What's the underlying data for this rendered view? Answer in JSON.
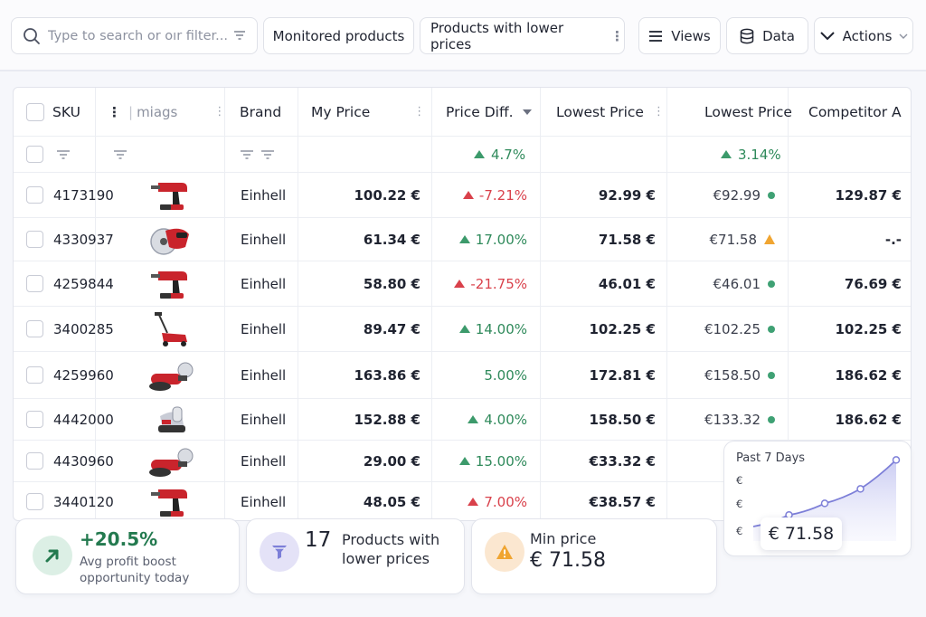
{
  "toolbar": {
    "search_placeholder": "Type to search or οır filter...",
    "chip_monitored": "Monitored products",
    "chip_lower_prices": "Products with lower prices",
    "views_label": "Views",
    "data_label": "Data",
    "actions_label": "Actions"
  },
  "table": {
    "headers": {
      "sku": "SKU",
      "images": "miags",
      "brand": "Brand",
      "my_price": "My Price",
      "price_diff": "Price Diff.",
      "lowest_price": "Lowest Price",
      "lowest_price_2": "Lowest Price",
      "competitor_a": "Competitor A"
    },
    "summary": {
      "price_diff": "4.7%",
      "lowest_price_2": "3.14%"
    },
    "rows": [
      {
        "sku": "4173190",
        "brand": "Einhell",
        "my_price": "100.22 €",
        "diff": "-7.21%",
        "diff_dir": "red",
        "lowest": "92.99 €",
        "lowest2": "€92.99",
        "status": "ok",
        "comp_a": "129.87 €",
        "img": "drill"
      },
      {
        "sku": "4330937",
        "brand": "Einhell",
        "my_price": "61.34 €",
        "diff": "17.00%",
        "diff_dir": "green",
        "lowest": "71.58 €",
        "lowest2": "€71.58",
        "status": "warn",
        "comp_a": "-.-",
        "img": "saw"
      },
      {
        "sku": "4259844",
        "brand": "Einhell",
        "my_price": "58.80 €",
        "diff": "-21.75%",
        "diff_dir": "red",
        "lowest": "46.01 €",
        "lowest2": "€46.01",
        "status": "ok",
        "comp_a": "76.69 €",
        "img": "drill"
      },
      {
        "sku": "3400285",
        "brand": "Einhell",
        "my_price": "89.47 €",
        "diff": "14.00%",
        "diff_dir": "green",
        "lowest": "102.25 €",
        "lowest2": "€102.25",
        "status": "ok",
        "comp_a": "102.25 €",
        "img": "mower"
      },
      {
        "sku": "4259960",
        "brand": "Einhell",
        "my_price": "163.86 €",
        "diff": "5.00%",
        "diff_dir": "green-noarrow",
        "lowest": "172.81 €",
        "lowest2": "€158.50",
        "status": "ok",
        "comp_a": "186.62 €",
        "img": "grinder"
      },
      {
        "sku": "4442000",
        "brand": "Einhell",
        "my_price": "152.88 €",
        "diff": "4.00%",
        "diff_dir": "green",
        "lowest": "158.50 €",
        "lowest2": "€133.32",
        "status": "ok",
        "comp_a": "186.62 €",
        "img": "sander"
      },
      {
        "sku": "4430960",
        "brand": "Einhell",
        "my_price": "29.00 €",
        "diff": "15.00%",
        "diff_dir": "green",
        "lowest": "€33.32 €",
        "lowest2": "",
        "status": "",
        "comp_a": "",
        "img": "grinder"
      },
      {
        "sku": "3440120",
        "brand": "Einhell",
        "my_price": "48.05 €",
        "diff": "7.00%",
        "diff_dir": "red",
        "lowest": "€38.57 €",
        "lowest2": "",
        "status": "",
        "comp_a": "",
        "img": "drill"
      }
    ]
  },
  "kpis": {
    "boost_value": "+20.5%",
    "boost_label": "Avg profit boost opportunity today",
    "lower_count": "17",
    "lower_label": "Products with lower prices",
    "min_title": "Min price",
    "min_value": "€ 71.58"
  },
  "sparkline": {
    "title": "Past 7 Days",
    "axis_labels": [
      "€",
      "€",
      "€"
    ],
    "value": "€ 71.58",
    "points": [
      50,
      58,
      66,
      76,
      96
    ]
  },
  "colors": {
    "accent": "#7d7fd8",
    "up_green": "#3c9a6b",
    "down_red": "#d9414b",
    "warn": "#f0a531",
    "tool_red": "#c9242c"
  }
}
